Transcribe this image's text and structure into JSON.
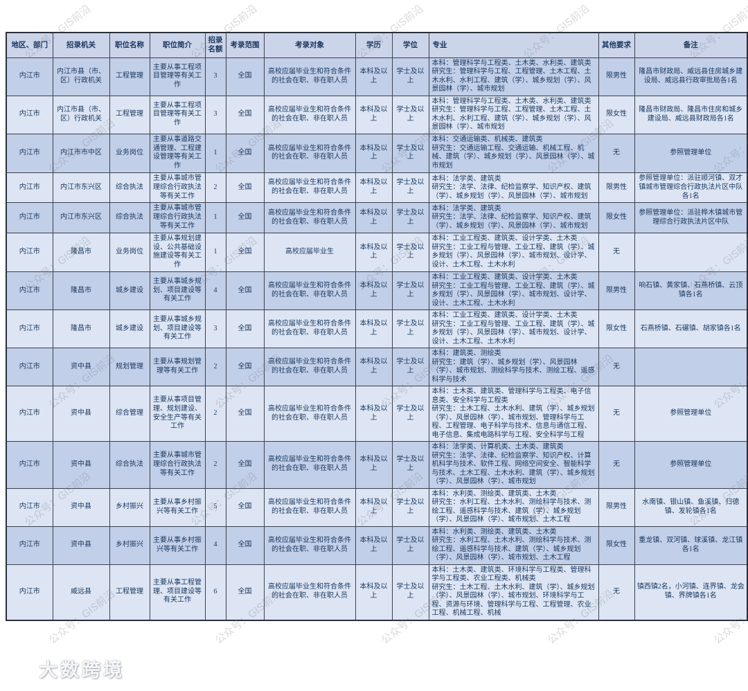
{
  "watermark": {
    "text": "公众号：GIS前沿"
  },
  "logo": {
    "text": "大数跨境",
    "icon": "logo-100-mark"
  },
  "table": {
    "headers": [
      "地区、部门",
      "招录机关",
      "职位名称",
      "职位简介",
      "招录名额",
      "考录范围",
      "考录对象",
      "学历",
      "学位",
      "专业",
      "其他要求",
      "备注"
    ],
    "rows": [
      {
        "region": "内江市",
        "agency": "内江市县（市、区）行政机关",
        "position": "工程管理",
        "summary": "主要从事工程项目管理等有关工作",
        "quota": "3",
        "scope": "全国",
        "target": "高校应届毕业生和符合条件的社会在职、非在职人员",
        "education": "本科及以上",
        "degree": "学士及以上",
        "major": "本科：管理科学与工程类、土木类、水利类、建筑类\n研究生：管理科学与工程、工程管理、土木工程、土木水利、水利工程、建筑（学）、城乡规划（学）、风景园林（学）、城市规划",
        "other": "限男性",
        "note": "隆昌市财政局、威远县住房城乡建设局、威远县行政审批局各1名"
      },
      {
        "region": "内江市",
        "agency": "内江市县（市、区）行政机关",
        "position": "工程管理",
        "summary": "主要从事工程项目管理等有关工作",
        "quota": "3",
        "scope": "全国",
        "target": "高校应届毕业生和符合条件的社会在职、非在职人员",
        "education": "本科及以上",
        "degree": "学士及以上",
        "major": "本科：管理科学与工程类、土木类、水利类、建筑类\n研究生：管理科学与工程、工程管理、土木工程、土木水利、水利工程、建筑（学）、城乡规划（学）、风景园林（学）、城市规划",
        "other": "限女性",
        "note": "隆昌市财政局、隆昌市住房和城乡建设局、威远县财政局各1名"
      },
      {
        "region": "内江市",
        "agency": "内江市市中区",
        "position": "业务岗位",
        "summary": "主要从事道路交通管理、工程建设管理等有关工作",
        "quota": "1",
        "scope": "全国",
        "target": "高校应届毕业生和符合条件的社会在职、非在职人员",
        "education": "本科及以上",
        "degree": "学士及以上",
        "major": "本科：交通运输类、机械类、建筑类\n研究生：交通运输工程、交通运输、机械工程、机械、建筑（学）、城乡规划（学）、风景园林（学）、城市规划",
        "other": "无",
        "note": "参照管理单位"
      },
      {
        "region": "内江市",
        "agency": "内江市东兴区",
        "position": "综合执法",
        "summary": "主要从事城市管理综合行政执法等有关工作",
        "quota": "2",
        "scope": "全国",
        "target": "高校应届毕业生和符合条件的社会在职、非在职人员",
        "education": "本科及以上",
        "degree": "学士及以上",
        "major": "本科：法学类、建筑类\n研究生：法学、法律、纪检监察学、知识产权、建筑（学）、城乡规划（学）、风景园林（学）、城市规划",
        "other": "限男性",
        "note": "参照管理单位：派驻顺河镇、双才镇城市管理综合行政执法片区中队各1名"
      },
      {
        "region": "内江市",
        "agency": "内江市东兴区",
        "position": "综合执法",
        "summary": "主要从事城市管理综合行政执法等有关工作",
        "quota": "1",
        "scope": "全国",
        "target": "高校应届毕业生和符合条件的社会在职、非在职人员",
        "education": "本科及以上",
        "degree": "学士及以上",
        "major": "本科：法学类、建筑类\n研究生：法学、法律、纪检监察学、知识产权、建筑（学）、城乡规划（学）、风景园林（学）、城市规划",
        "other": "限女性",
        "note": "参照管理单位：派驻桦木镇城市管理综合行政执法片区中队"
      },
      {
        "region": "内江市",
        "agency": "隆昌市",
        "position": "业务岗位",
        "summary": "主要从事规划建设、公共基础设施建设等有关工作",
        "quota": "1",
        "scope": "全国",
        "target": "高校应届毕业生",
        "education": "本科及以上",
        "degree": "学士及以上",
        "major": "本科：工业工程类、建筑类、设计学类、土木类\n研究生：工业工程与管理、工业工程、建筑（学）、城乡规划（学）、风景园林（学）、城市规划、设计学、设计、土木工程、土木水利",
        "other": "无",
        "note": ""
      },
      {
        "region": "内江市",
        "agency": "隆昌市",
        "position": "城乡建设",
        "summary": "主要从事城乡规划、项目建设等有关工作",
        "quota": "4",
        "scope": "全国",
        "target": "高校应届毕业生和符合条件的社会在职、非在职人员",
        "education": "本科及以上",
        "degree": "学士及以上",
        "major": "本科：工业工程类、建筑类、设计学类、土木类\n研究生：工业工程与管理、工业工程、建筑（学）、城乡规划（学）、风景园林（学）、城市规划、设计学、设计、土木工程、土木水利",
        "other": "限男性",
        "note": "响石镇、黄家镇、石燕桥镇、云顶镇各1名"
      },
      {
        "region": "内江市",
        "agency": "隆昌市",
        "position": "城乡建设",
        "summary": "主要从事城乡规划、项目建设等有关工作",
        "quota": "3",
        "scope": "全国",
        "target": "高校应届毕业生和符合条件的社会在职、非在职人员",
        "education": "本科及以上",
        "degree": "学士及以上",
        "major": "本科：工业工程类、建筑类、设计学类、土木类\n研究生：工业工程与管理、工业工程、建筑（学）、城乡规划（学）、风景园林（学）、城市规划、设计学、设计、土木工程、土木水利",
        "other": "限女性",
        "note": "石燕桥镇、石碾镇、胡家镇各1名"
      },
      {
        "region": "内江市",
        "agency": "资中县",
        "position": "规划管理",
        "summary": "主要从事规划管理等有关工作",
        "quota": "2",
        "scope": "全国",
        "target": "高校应届毕业生和符合条件的社会在职、非在职人员",
        "education": "本科及以上",
        "degree": "学士及以上",
        "major": "本科：建筑类、测绘类\n研究生：建筑（学）、城乡规划（学）、风景园林（学）、城市规划、测绘科学与技术、测绘工程、遥感科学与技术",
        "other": "无",
        "note": ""
      },
      {
        "region": "内江市",
        "agency": "资中县",
        "position": "综合管理",
        "summary": "主要从事项目管理、规划建设、安全生产等有关工作",
        "quota": "2",
        "scope": "全国",
        "target": "高校应届毕业生和符合条件的社会在职、非在职人员",
        "education": "本科及以上",
        "degree": "学士及以上",
        "major": "本科：土木类、建筑类、管理科学与工程类、电子信息类、安全科学与工程类\n研究生：土木工程、土木水利、建筑（学）、城乡规划（学）、风景园林（学）、城市规划、管理科学与工程、工程管理、电子科学与技术、信息与通信工程、电子信息、集成电路科学与工程、安全科学与工程",
        "other": "无",
        "note": "参照管理单位"
      },
      {
        "region": "内江市",
        "agency": "资中县",
        "position": "综合执法",
        "summary": "主要从事城市管理综合行政执法等有关工作",
        "quota": "2",
        "scope": "全国",
        "target": "高校应届毕业生和符合条件的社会在职、非在职人员",
        "education": "本科及以上",
        "degree": "学士及以上",
        "major": "本科：法学类、计算机类、土木类、建筑类\n研究生：法学、法律、纪检监察学、知识产权、计算机科学与技术、软件工程、网络空间安全、智能科学与技术、土木工程、土木水利、建筑（学）、城乡规划（学）、风景园林（学）、城市规划",
        "other": "无",
        "note": "参照管理单位"
      },
      {
        "region": "内江市",
        "agency": "资中县",
        "position": "乡村振兴",
        "summary": "主要从事乡村振兴等有关工作",
        "quota": "5",
        "scope": "全国",
        "target": "高校应届毕业生和符合条件的社会在职、非在职人员",
        "education": "本科及以上",
        "degree": "学士及以上",
        "major": "本科：水利类、测绘类、建筑类、土木类\n研究生：水利工程、土木水利、测绘科学与技术、测绘工程、遥感科学与技术、建筑（学）、城乡规划（学）、风景园林（学）、城市规划、土木工程",
        "other": "限男性",
        "note": "水南镇、银山镇、鱼溪镇、归德镇、发轮镇各1名"
      },
      {
        "region": "内江市",
        "agency": "资中县",
        "position": "乡村振兴",
        "summary": "主要从事乡村振兴等有关工作",
        "quota": "4",
        "scope": "全国",
        "target": "高校应届毕业生和符合条件的社会在职、非在职人员",
        "education": "本科及以上",
        "degree": "学士及以上",
        "major": "本科：水利类、测绘类、建筑类、土木类\n研究生：水利工程、土木水利、测绘科学与技术、测绘工程、遥感科学与技术、建筑（学）、城乡规划（学）、风景园林（学）、城市规划、土木工程",
        "other": "限女性",
        "note": "重龙镇、双河镇、球溪镇、龙江镇各1名"
      },
      {
        "region": "内江市",
        "agency": "威远县",
        "position": "工程管理",
        "summary": "主要从事工程管理、项目建设等有关工作",
        "quota": "6",
        "scope": "全国",
        "target": "高校应届毕业生和符合条件的社会在职、非在职人员",
        "education": "本科及以上",
        "degree": "学士及以上",
        "major": "本科：土木类、建筑类、环境科学与工程类、管理科学与工程类、农业工程类、机械类\n研究生：土木工程、土木水利、建筑（学）、城乡规划（学）、风景园林（学）、城市规划、环境科学与工程、资源与环境、管理科学与工程、工程管理、农业工程、机械工程、机械",
        "other": "无",
        "note": "镇西镇2名，小河镇、连界镇、龙会镇、界牌镇各1名"
      }
    ]
  }
}
